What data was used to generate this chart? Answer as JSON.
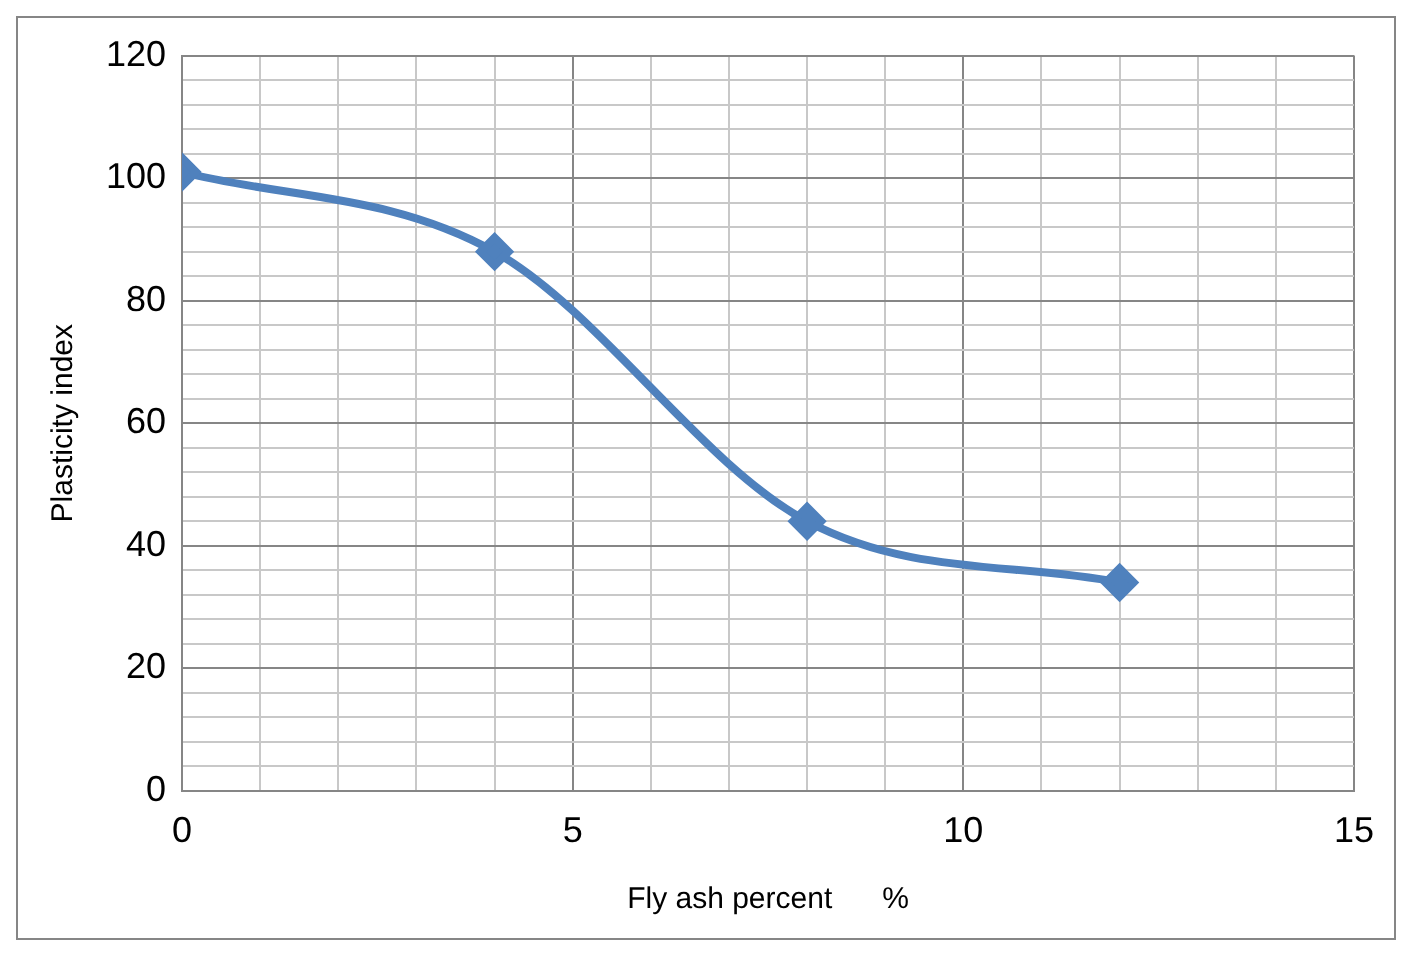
{
  "chart_data": {
    "type": "line",
    "xlabel": "Fly ash percent      %",
    "ylabel": "Plasticity index",
    "x": [
      0,
      4,
      8,
      12
    ],
    "series": [
      {
        "color": "#4f81bd",
        "values": [
          101,
          88,
          44,
          34
        ]
      }
    ],
    "xlim": [
      0,
      15
    ],
    "xticks": [
      0,
      {
        "value": 1,
        "label": null
      },
      {
        "value": 2,
        "label": null
      },
      {
        "value": 3,
        "label": null
      },
      {
        "value": 4,
        "label": null
      },
      5,
      {
        "value": 6,
        "label": null
      },
      {
        "value": 7,
        "label": null
      },
      {
        "value": 8,
        "label": null
      },
      {
        "value": 9,
        "label": null
      },
      10,
      {
        "value": 11,
        "label": null
      },
      {
        "value": 12,
        "label": null
      },
      {
        "value": 13,
        "label": null
      },
      {
        "value": 14,
        "label": null
      },
      15
    ],
    "ylim": [
      0,
      120
    ],
    "yticks": [
      0,
      {
        "value": 4,
        "label": null
      },
      {
        "value": 8,
        "label": null
      },
      {
        "value": 12,
        "label": null
      },
      {
        "value": 16,
        "label": null
      },
      20,
      {
        "value": 24,
        "label": null
      },
      {
        "value": 28,
        "label": null
      },
      {
        "value": 32,
        "label": null
      },
      {
        "value": 36,
        "label": null
      },
      40,
      {
        "value": 44,
        "label": null
      },
      {
        "value": 48,
        "label": null
      },
      {
        "value": 52,
        "label": null
      },
      {
        "value": 56,
        "label": null
      },
      60,
      {
        "value": 64,
        "label": null
      },
      {
        "value": 68,
        "label": null
      },
      {
        "value": 72,
        "label": null
      },
      {
        "value": 76,
        "label": null
      },
      80,
      {
        "value": 84,
        "label": null
      },
      {
        "value": 88,
        "label": null
      },
      {
        "value": 92,
        "label": null
      },
      {
        "value": 96,
        "label": null
      },
      100,
      {
        "value": 104,
        "label": null
      },
      {
        "value": 108,
        "label": null
      },
      {
        "value": 112,
        "label": null
      },
      {
        "value": 116,
        "label": null
      },
      120
    ],
    "grid": true,
    "legend": false,
    "marker": "diamond",
    "line_style": "solid"
  }
}
